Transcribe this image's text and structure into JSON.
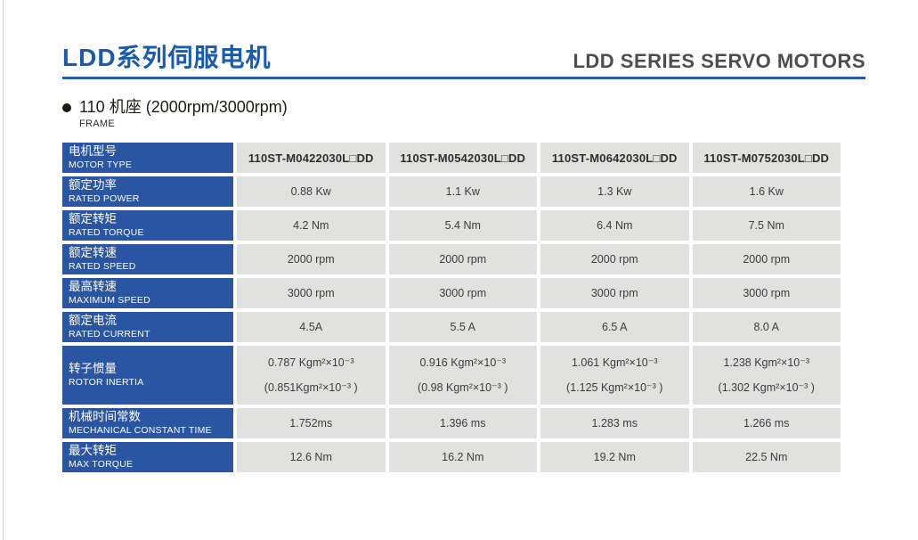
{
  "header": {
    "title_cn": "LDD系列伺服电机",
    "title_en": "LDD SERIES SERVO MOTORS"
  },
  "section": {
    "title": "110 机座 (2000rpm/3000rpm)",
    "subtitle": "FRAME"
  },
  "colors": {
    "title_blue": "#1a5bad",
    "underline_blue": "#2b5aa8",
    "label_cell_blue": "#2a55a3",
    "value_cell_gray": "#e1e1e0",
    "title_en_gray": "#4d4d4d"
  },
  "table": {
    "rows": [
      {
        "label_cn": "电机型号",
        "label_en": "MOTOR TYPE",
        "values": [
          "110ST-M0422030L□DD",
          "110ST-M0542030L□DD",
          "110ST-M0642030L□DD",
          "110ST-M0752030L□DD"
        ]
      },
      {
        "label_cn": "额定功率",
        "label_en": "RATED POWER",
        "values": [
          "0.88 Kw",
          "1.1 Kw",
          "1.3 Kw",
          "1.6 Kw"
        ]
      },
      {
        "label_cn": "额定转矩",
        "label_en": "RATED TORQUE",
        "values": [
          "4.2 Nm",
          "5.4 Nm",
          "6.4 Nm",
          "7.5 Nm"
        ]
      },
      {
        "label_cn": "额定转速",
        "label_en": "RATED SPEED",
        "values": [
          "2000 rpm",
          "2000 rpm",
          "2000 rpm",
          "2000 rpm"
        ]
      },
      {
        "label_cn": "最高转速",
        "label_en": "MAXIMUM SPEED",
        "values": [
          "3000 rpm",
          "3000 rpm",
          "3000 rpm",
          "3000 rpm"
        ]
      },
      {
        "label_cn": "额定电流",
        "label_en": "RATED CURRENT",
        "values": [
          "4.5A",
          "5.5 A",
          "6.5 A",
          "8.0 A"
        ]
      },
      {
        "label_cn": "转子惯量",
        "label_en": "ROTOR INERTIA",
        "values": [
          "0.787 Kgm²×10⁻³\n(0.851Kgm²×10⁻³ )",
          "0.916 Kgm²×10⁻³\n(0.98 Kgm²×10⁻³ )",
          "1.061 Kgm²×10⁻³\n(1.125 Kgm²×10⁻³ )",
          "1.238 Kgm²×10⁻³\n(1.302 Kgm²×10⁻³ )"
        ]
      },
      {
        "label_cn": "机械时间常数",
        "label_en": "MECHANICAL CONSTANT TIME",
        "values": [
          "1.752ms",
          "1.396 ms",
          "1.283 ms",
          "1.266 ms"
        ]
      },
      {
        "label_cn": "最大转矩",
        "label_en": "MAX TORQUE",
        "values": [
          "12.6 Nm",
          "16.2 Nm",
          "19.2 Nm",
          "22.5 Nm"
        ]
      }
    ]
  }
}
